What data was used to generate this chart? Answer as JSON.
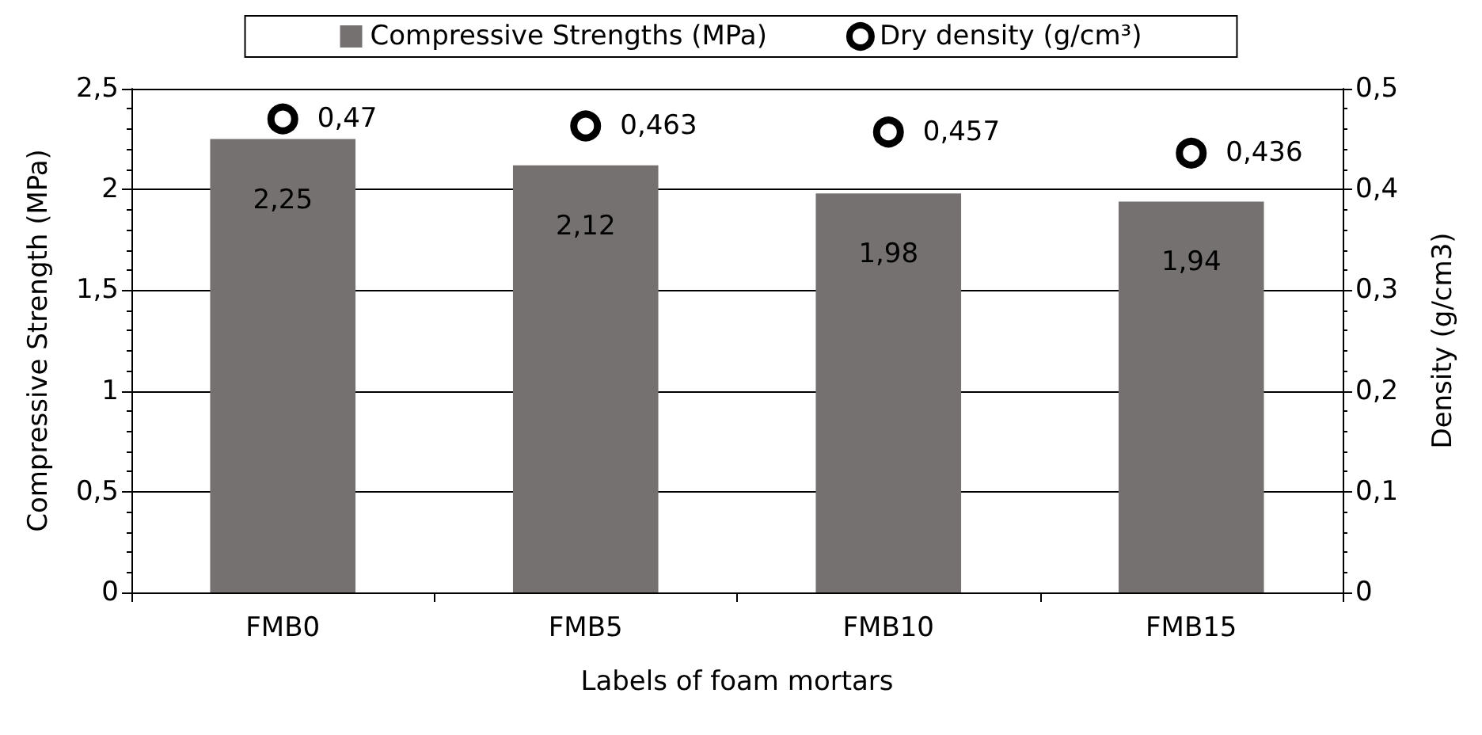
{
  "chart_data": {
    "type": "bar",
    "xlabel": "Labels of foam mortars",
    "ylabel": "Compressive Strength (MPa)",
    "y2label": "Density (g/cm3)",
    "categories": [
      "FMB0",
      "FMB5",
      "FMB10",
      "FMB15"
    ],
    "series": [
      {
        "name": "Compressive Strengths (MPa)",
        "color": "#767171",
        "values": [
          2.25,
          2.12,
          1.98,
          1.94
        ],
        "value_labels": [
          "2,25",
          "2,12",
          "1,98",
          "1,94"
        ]
      },
      {
        "name": "Dry density (g/cm³)",
        "type": "scatter",
        "axis": "y2",
        "color": "#000000",
        "marker": "circle",
        "values": [
          0.47,
          0.463,
          0.457,
          0.436
        ],
        "value_labels": [
          "0,47",
          "0,463",
          "0,457",
          "0,436"
        ]
      }
    ],
    "ylim": [
      0,
      2.5
    ],
    "yticks": [
      0,
      {
        "value": 0.5,
        "label": "0,5"
      },
      1,
      {
        "value": 1.5,
        "label": "1,5"
      },
      2,
      {
        "value": 2.5,
        "label": "2,5"
      }
    ],
    "y2lim": [
      0,
      0.5
    ],
    "y2ticks": [
      0,
      {
        "value": 0.1,
        "label": "0,1"
      },
      {
        "value": 0.2,
        "label": "0,2"
      },
      {
        "value": 0.3,
        "label": "0,3"
      },
      {
        "value": 0.4,
        "label": "0,4"
      },
      {
        "value": 0.5,
        "label": "0,5"
      }
    ],
    "grid": "y",
    "legend": "top"
  }
}
